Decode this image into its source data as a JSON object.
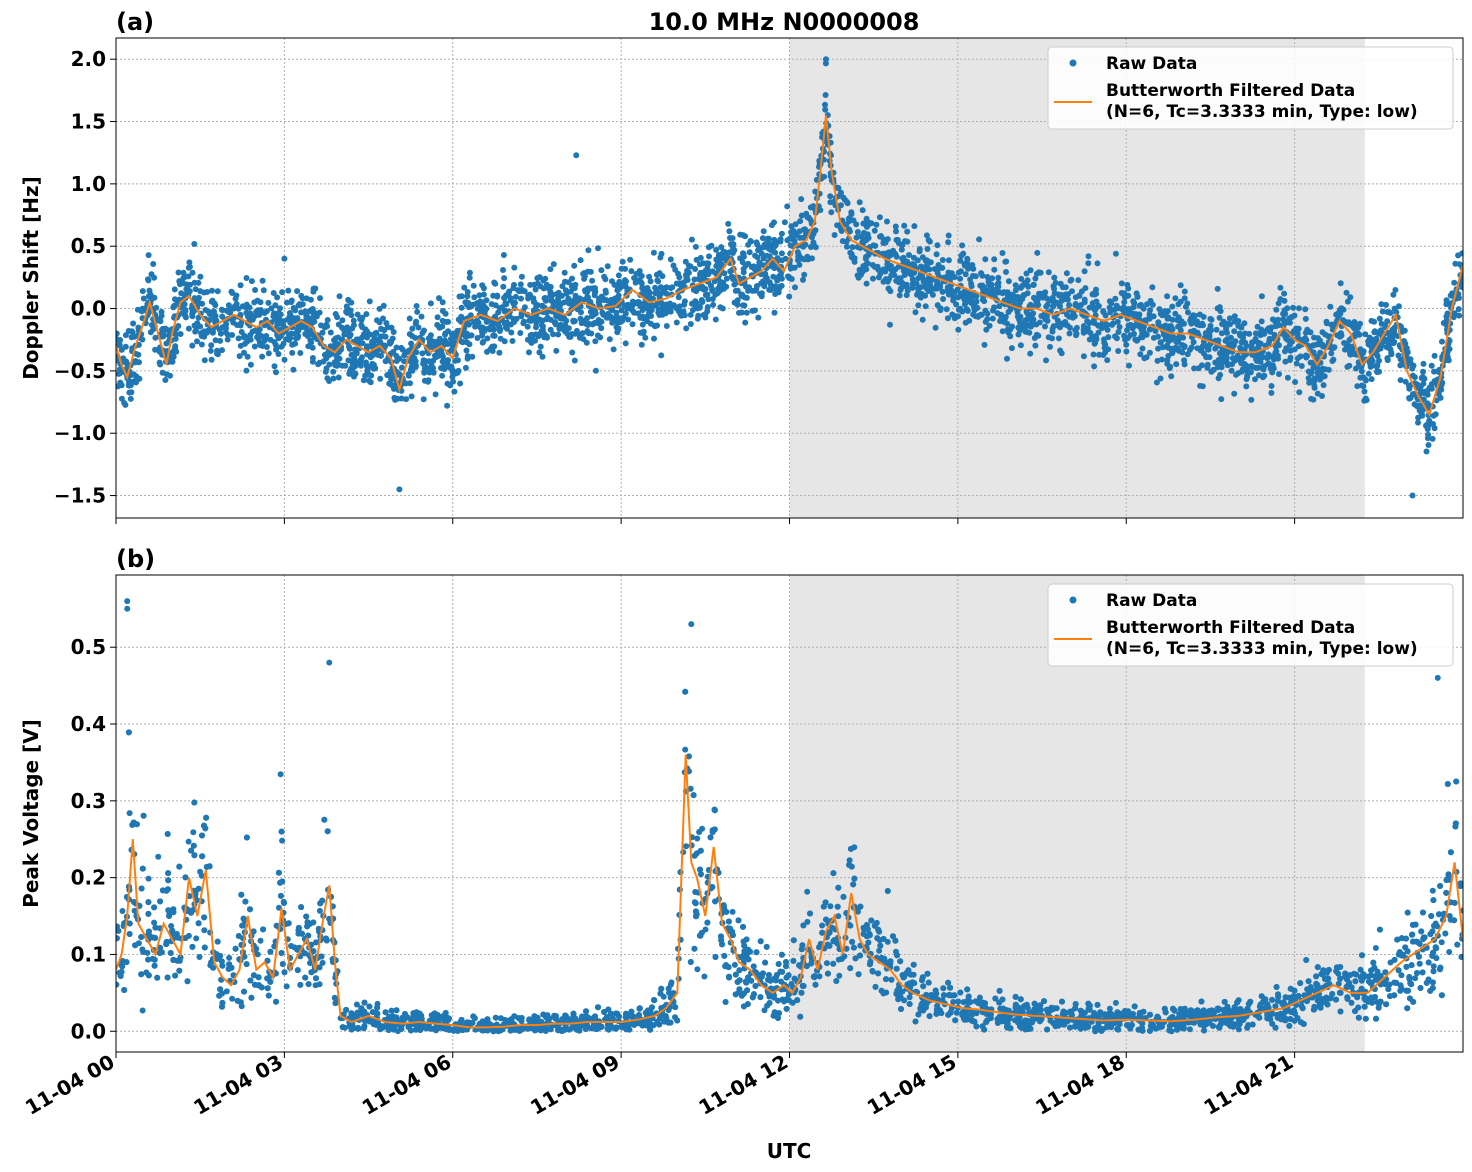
{
  "figure": {
    "title": "10.0 MHz N0000008",
    "xlabel": "UTC",
    "x_tick_labels": [
      "11-04 00",
      "11-04 03",
      "11-04 06",
      "11-04 09",
      "11-04 12",
      "11-04 15",
      "11-04 18",
      "11-04 21"
    ]
  },
  "legend": {
    "raw": "Raw Data",
    "filtered_line1": "Butterworth Filtered Data",
    "filtered_line2": "(N=6, Tc=3.3333 min, Type: low)"
  },
  "colors": {
    "raw": "#1f77b4",
    "filtered": "#ff7f0e",
    "shade": "#e6e6e6",
    "grid": "#b0b0b0"
  },
  "chart_data": [
    {
      "panel": "(a)",
      "type": "scatter",
      "ylabel": "Doppler Shift [Hz]",
      "xlim_hours": [
        0,
        24
      ],
      "ylim": [
        -1.68,
        2.17
      ],
      "yticks": [
        -1.5,
        -1.0,
        -0.5,
        0.0,
        0.5,
        1.0,
        1.5,
        2.0
      ],
      "ytick_labels": [
        "−1.5",
        "−1.0",
        "−0.5",
        "0.0",
        "0.5",
        "1.0",
        "1.5",
        "2.0"
      ],
      "shaded_interval_hours": [
        12.0,
        22.25
      ],
      "grid": true,
      "legend_position": "top-right",
      "series": [
        {
          "name": "Butterworth Filtered Data",
          "x_hours": [
            0.0,
            0.1,
            0.2,
            0.35,
            0.5,
            0.6,
            0.75,
            0.9,
            1.0,
            1.15,
            1.3,
            1.5,
            1.7,
            1.9,
            2.1,
            2.3,
            2.5,
            2.7,
            2.9,
            3.1,
            3.3,
            3.5,
            3.7,
            3.9,
            4.1,
            4.3,
            4.5,
            4.7,
            4.9,
            5.05,
            5.2,
            5.4,
            5.6,
            5.8,
            6.0,
            6.2,
            6.5,
            6.8,
            7.1,
            7.4,
            7.7,
            8.0,
            8.3,
            8.6,
            8.9,
            9.2,
            9.5,
            9.8,
            10.1,
            10.4,
            10.7,
            10.95,
            11.1,
            11.3,
            11.5,
            11.7,
            11.9,
            12.1,
            12.3,
            12.45,
            12.55,
            12.65,
            12.75,
            12.9,
            13.1,
            13.3,
            13.5,
            13.7,
            14.0,
            14.3,
            14.6,
            14.9,
            15.2,
            15.5,
            15.8,
            16.1,
            16.4,
            16.7,
            17.0,
            17.3,
            17.6,
            17.9,
            18.2,
            18.5,
            18.8,
            19.1,
            19.4,
            19.7,
            20.0,
            20.3,
            20.6,
            20.8,
            21.0,
            21.2,
            21.4,
            21.6,
            21.8,
            22.0,
            22.2,
            22.4,
            22.6,
            22.8,
            23.0,
            23.2,
            23.4,
            23.6,
            23.8,
            24.0
          ],
          "values": [
            -0.3,
            -0.45,
            -0.55,
            -0.3,
            -0.1,
            0.05,
            -0.2,
            -0.45,
            -0.2,
            0.05,
            0.1,
            -0.05,
            -0.15,
            -0.1,
            -0.05,
            -0.1,
            -0.15,
            -0.1,
            -0.2,
            -0.15,
            -0.1,
            -0.15,
            -0.3,
            -0.35,
            -0.25,
            -0.3,
            -0.35,
            -0.3,
            -0.4,
            -0.65,
            -0.4,
            -0.25,
            -0.35,
            -0.3,
            -0.4,
            -0.1,
            -0.05,
            -0.1,
            0.0,
            -0.05,
            0.0,
            -0.05,
            0.05,
            0.0,
            0.02,
            0.15,
            0.05,
            0.08,
            0.15,
            0.2,
            0.25,
            0.4,
            0.2,
            0.25,
            0.3,
            0.4,
            0.3,
            0.5,
            0.55,
            0.7,
            1.1,
            1.55,
            1.1,
            0.7,
            0.55,
            0.5,
            0.45,
            0.4,
            0.35,
            0.3,
            0.25,
            0.2,
            0.15,
            0.1,
            0.05,
            0.0,
            0.0,
            -0.05,
            0.0,
            -0.05,
            -0.1,
            -0.05,
            -0.1,
            -0.15,
            -0.2,
            -0.2,
            -0.25,
            -0.3,
            -0.35,
            -0.35,
            -0.3,
            -0.15,
            -0.25,
            -0.3,
            -0.45,
            -0.3,
            -0.1,
            -0.2,
            -0.45,
            -0.35,
            -0.2,
            -0.05,
            -0.5,
            -0.7,
            -0.85,
            -0.55,
            0.0,
            0.35
          ]
        },
        {
          "name": "Raw Data",
          "spread_hz": 0.45,
          "isolated_points": [
            [
              12.65,
              2.0
            ],
            [
              5.05,
              -1.45
            ],
            [
              23.1,
              -1.5
            ],
            [
              8.2,
              1.23
            ],
            [
              3.0,
              0.4
            ]
          ]
        }
      ]
    },
    {
      "panel": "(b)",
      "type": "scatter",
      "ylabel": "Peak Voltage [V]",
      "xlim_hours": [
        0,
        24
      ],
      "ylim": [
        -0.027,
        0.594
      ],
      "yticks": [
        0.0,
        0.1,
        0.2,
        0.3,
        0.4,
        0.5
      ],
      "ytick_labels": [
        "0.0",
        "0.1",
        "0.2",
        "0.3",
        "0.4",
        "0.5"
      ],
      "shaded_interval_hours": [
        12.0,
        22.25
      ],
      "grid": true,
      "legend_position": "top-right",
      "series": [
        {
          "name": "Butterworth Filtered Data",
          "x_hours": [
            0.0,
            0.1,
            0.2,
            0.3,
            0.4,
            0.55,
            0.7,
            0.85,
            1.0,
            1.15,
            1.3,
            1.45,
            1.6,
            1.75,
            1.9,
            2.05,
            2.2,
            2.35,
            2.5,
            2.65,
            2.8,
            2.95,
            3.1,
            3.25,
            3.4,
            3.55,
            3.7,
            3.8,
            3.9,
            4.0,
            4.2,
            4.5,
            4.8,
            5.1,
            5.4,
            5.7,
            6.0,
            6.3,
            6.6,
            6.9,
            7.2,
            7.5,
            7.8,
            8.1,
            8.4,
            8.7,
            9.0,
            9.3,
            9.6,
            9.8,
            10.0,
            10.15,
            10.25,
            10.35,
            10.5,
            10.65,
            10.8,
            10.95,
            11.1,
            11.3,
            11.5,
            11.7,
            11.9,
            12.05,
            12.2,
            12.35,
            12.5,
            12.65,
            12.8,
            12.95,
            13.1,
            13.25,
            13.4,
            13.6,
            13.8,
            14.0,
            14.2,
            14.5,
            14.8,
            15.1,
            15.4,
            15.7,
            16.0,
            16.4,
            16.8,
            17.2,
            17.6,
            18.0,
            18.4,
            18.8,
            19.2,
            19.6,
            20.0,
            20.4,
            20.8,
            21.1,
            21.4,
            21.7,
            22.0,
            22.3,
            22.6,
            22.9,
            23.1,
            23.3,
            23.5,
            23.7,
            23.85,
            24.0
          ],
          "values": [
            0.08,
            0.1,
            0.15,
            0.25,
            0.14,
            0.12,
            0.1,
            0.14,
            0.12,
            0.1,
            0.2,
            0.15,
            0.21,
            0.09,
            0.07,
            0.06,
            0.08,
            0.15,
            0.08,
            0.09,
            0.07,
            0.16,
            0.08,
            0.1,
            0.12,
            0.08,
            0.15,
            0.19,
            0.09,
            0.02,
            0.012,
            0.02,
            0.012,
            0.01,
            0.012,
            0.01,
            0.008,
            0.005,
            0.005,
            0.006,
            0.008,
            0.008,
            0.01,
            0.01,
            0.012,
            0.012,
            0.012,
            0.015,
            0.02,
            0.03,
            0.05,
            0.36,
            0.22,
            0.2,
            0.15,
            0.24,
            0.14,
            0.12,
            0.09,
            0.08,
            0.06,
            0.05,
            0.06,
            0.05,
            0.07,
            0.12,
            0.08,
            0.13,
            0.15,
            0.1,
            0.18,
            0.12,
            0.1,
            0.09,
            0.08,
            0.06,
            0.05,
            0.04,
            0.035,
            0.03,
            0.028,
            0.025,
            0.022,
            0.02,
            0.018,
            0.016,
            0.014,
            0.015,
            0.014,
            0.013,
            0.015,
            0.018,
            0.02,
            0.025,
            0.03,
            0.04,
            0.05,
            0.06,
            0.05,
            0.05,
            0.07,
            0.09,
            0.1,
            0.11,
            0.12,
            0.15,
            0.22,
            0.12
          ]
        },
        {
          "name": "Raw Data",
          "spread_v": 0.1,
          "isolated_points": [
            [
              0.2,
              0.56
            ],
            [
              0.2,
              0.55
            ],
            [
              3.8,
              0.48
            ],
            [
              10.25,
              0.53
            ],
            [
              23.55,
              0.46
            ]
          ]
        }
      ]
    }
  ]
}
